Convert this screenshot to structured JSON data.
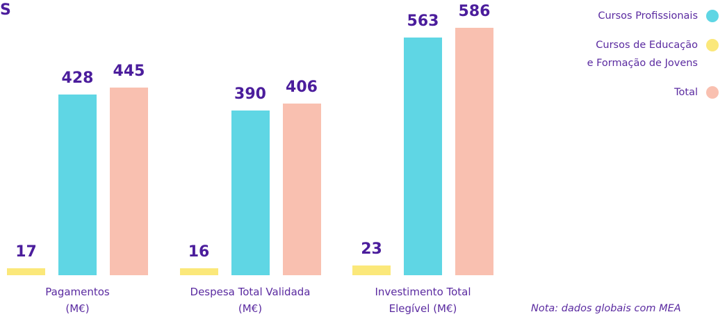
{
  "chart_data": {
    "type": "bar",
    "title": "S",
    "categories": [
      "Pagamentos\n(M€)",
      "Despesa Total Validada\n(M€)",
      "Investimento Total\nElegível (M€)"
    ],
    "series": [
      {
        "name": "Cursos de Educação\ne Formação de Jovens",
        "color": "#fbe87a",
        "values": [
          17,
          16,
          23
        ]
      },
      {
        "name": "Cursos Profissionais",
        "color": "#5fd6e4",
        "values": [
          428,
          390,
          563
        ]
      },
      {
        "name": "Total",
        "color": "#f9c0b0",
        "values": [
          445,
          406,
          586
        ]
      }
    ],
    "legend_order": [
      1,
      0,
      2
    ],
    "note": "Nota: dados globais com MEA"
  }
}
